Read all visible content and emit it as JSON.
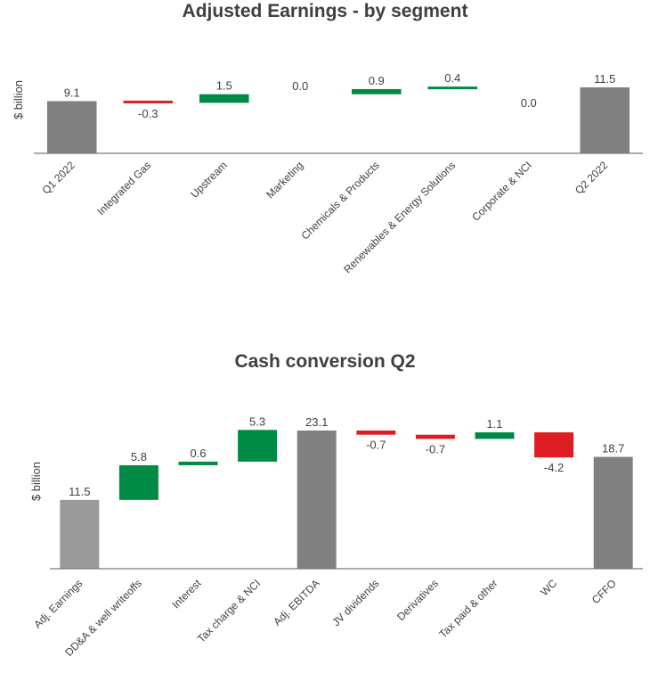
{
  "chart_data": [
    {
      "type": "waterfall",
      "title": "Adjusted Earnings - by segment",
      "ylabel": "$ billion",
      "categories": [
        "Q1 2022",
        "Integrated Gas",
        "Upstream",
        "Marketing",
        "Chemicals & Products",
        "Renewables & Energy Solutions",
        "Corporate & NCI",
        "Q2 2022"
      ],
      "values": [
        9.1,
        -0.3,
        1.5,
        0.0,
        0.9,
        0.4,
        0.0,
        11.5
      ],
      "labels": [
        "9.1",
        "-0.3",
        "1.5",
        "0.0",
        "0.9",
        "0.4",
        "0.0",
        "11.5"
      ],
      "kinds": [
        "total",
        "delta",
        "delta",
        "delta",
        "delta",
        "delta",
        "delta",
        "total"
      ]
    },
    {
      "type": "waterfall",
      "title": "Cash conversion Q2",
      "ylabel": "$ billion",
      "categories": [
        "Adj. Earnings",
        "DD&A & well writeoffs",
        "Interest",
        "Tax charge & NCI",
        "Adj. EBITDA",
        "JV dividends",
        "Derivatives",
        "Tax paid & other",
        "WC",
        "CFFO"
      ],
      "values": [
        11.5,
        5.8,
        0.6,
        5.3,
        23.1,
        -0.7,
        -0.7,
        1.1,
        -4.2,
        18.7
      ],
      "labels": [
        "11.5",
        "5.8",
        "0.6",
        "5.3",
        "23.1",
        "-0.7",
        "-0.7",
        "1.1",
        "-4.2",
        "18.7"
      ],
      "kinds": [
        "start",
        "delta",
        "delta",
        "delta",
        "total",
        "delta",
        "delta",
        "delta",
        "delta",
        "total"
      ]
    }
  ],
  "colors": {
    "total": "#808080",
    "start": "#9a9a9a",
    "positive": "#008a45",
    "negative": "#dd1d21",
    "axis": "#7a7a7a"
  }
}
